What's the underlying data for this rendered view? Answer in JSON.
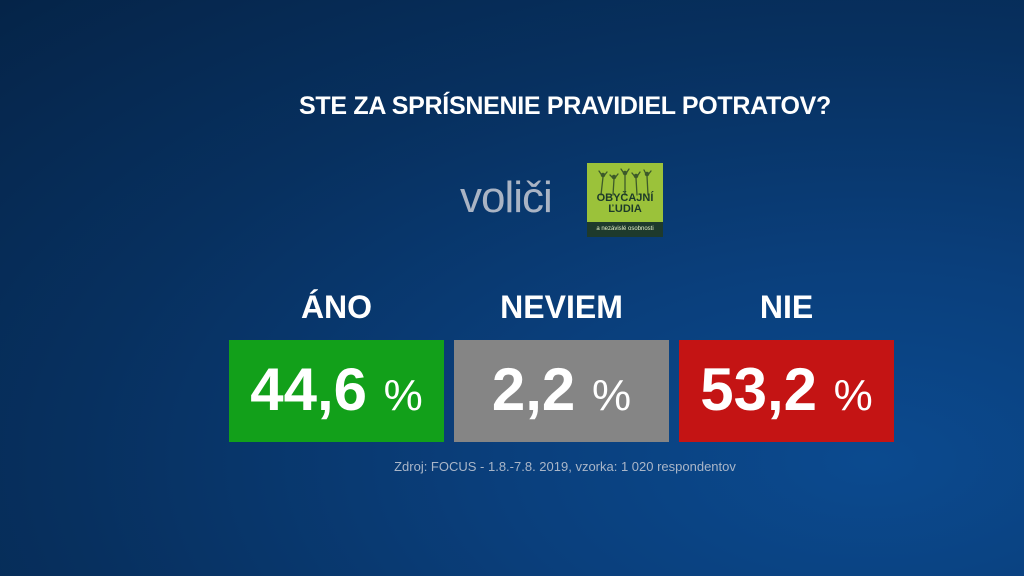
{
  "title": "STE ZA SPRÍSNENIE PRAVIDIEL POTRATOV?",
  "voters_label": "voliči",
  "party_logo": {
    "name": "OBYČAJNÍ\nĽUDIA",
    "subtitle": "a nezávislé osobnosti",
    "color": "#9bc23a"
  },
  "chart_data": {
    "type": "bar",
    "categories": [
      "ÁNO",
      "NEVIEM",
      "NIE"
    ],
    "values": [
      44.6,
      2.2,
      53.2
    ],
    "value_labels": [
      "44,6",
      "2,2",
      "53,2"
    ],
    "unit": "%",
    "colors": [
      "#12a01a",
      "#858585",
      "#c41414"
    ]
  },
  "source": "Zdroj: FOCUS - 1.8.-7.8. 2019, vzorka: 1 020 respondentov"
}
